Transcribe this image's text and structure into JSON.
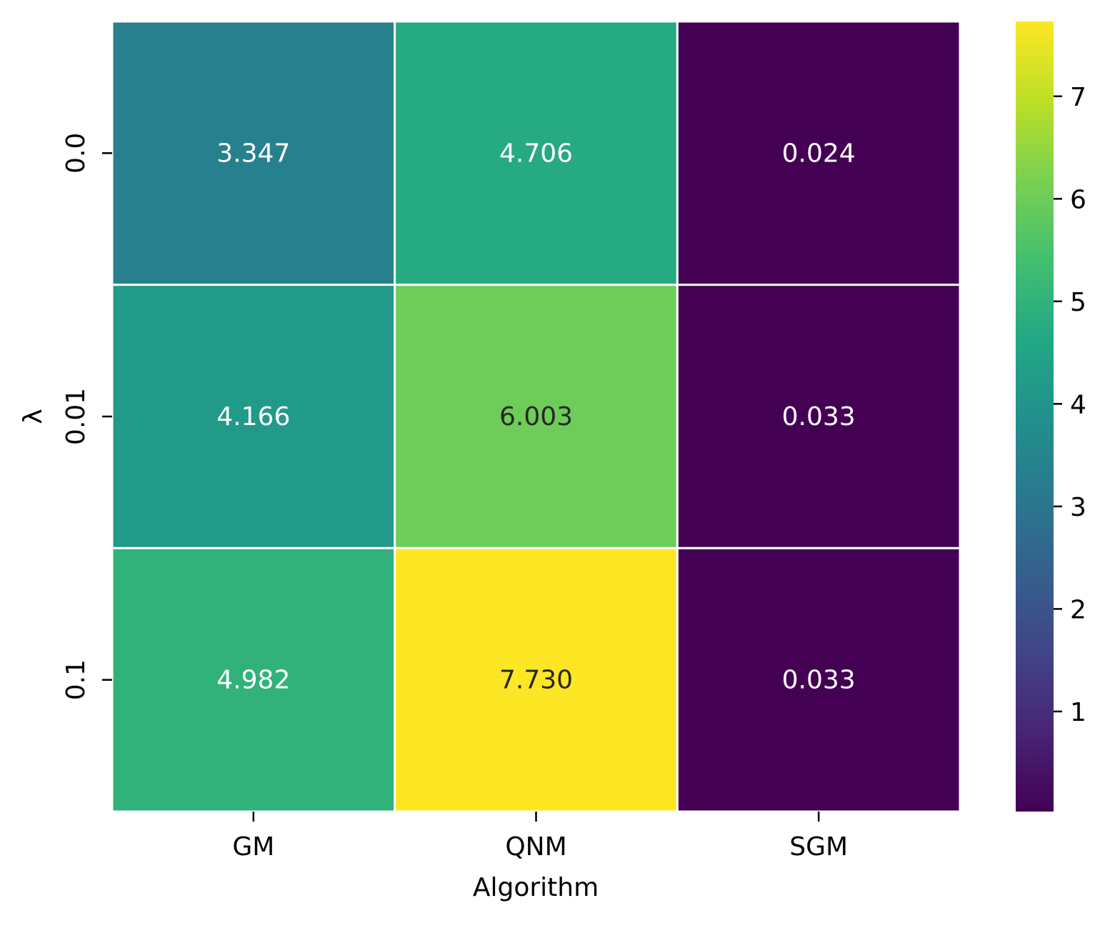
{
  "chart_data": {
    "type": "heatmap",
    "xlabel": "Algorithm",
    "ylabel": "λ",
    "x_categories": [
      "GM",
      "QNM",
      "SGM"
    ],
    "y_categories": [
      "0.0",
      "0.01",
      "0.1"
    ],
    "values": [
      [
        3.347,
        4.706,
        0.024
      ],
      [
        4.166,
        6.003,
        0.033
      ],
      [
        4.982,
        7.73,
        0.033
      ]
    ],
    "cell_labels": [
      [
        "3.347",
        "4.706",
        "0.024"
      ],
      [
        "4.166",
        "6.003",
        "0.033"
      ],
      [
        "4.982",
        "7.730",
        "0.033"
      ]
    ],
    "colormap": "viridis",
    "color_range": [
      0.024,
      7.73
    ],
    "colorbar_ticks": [
      "1",
      "2",
      "3",
      "4",
      "5",
      "6",
      "7"
    ],
    "colors": {
      "cell_border": "#ffffff",
      "label_light": "#ffffff",
      "label_dark": "#262626"
    }
  }
}
